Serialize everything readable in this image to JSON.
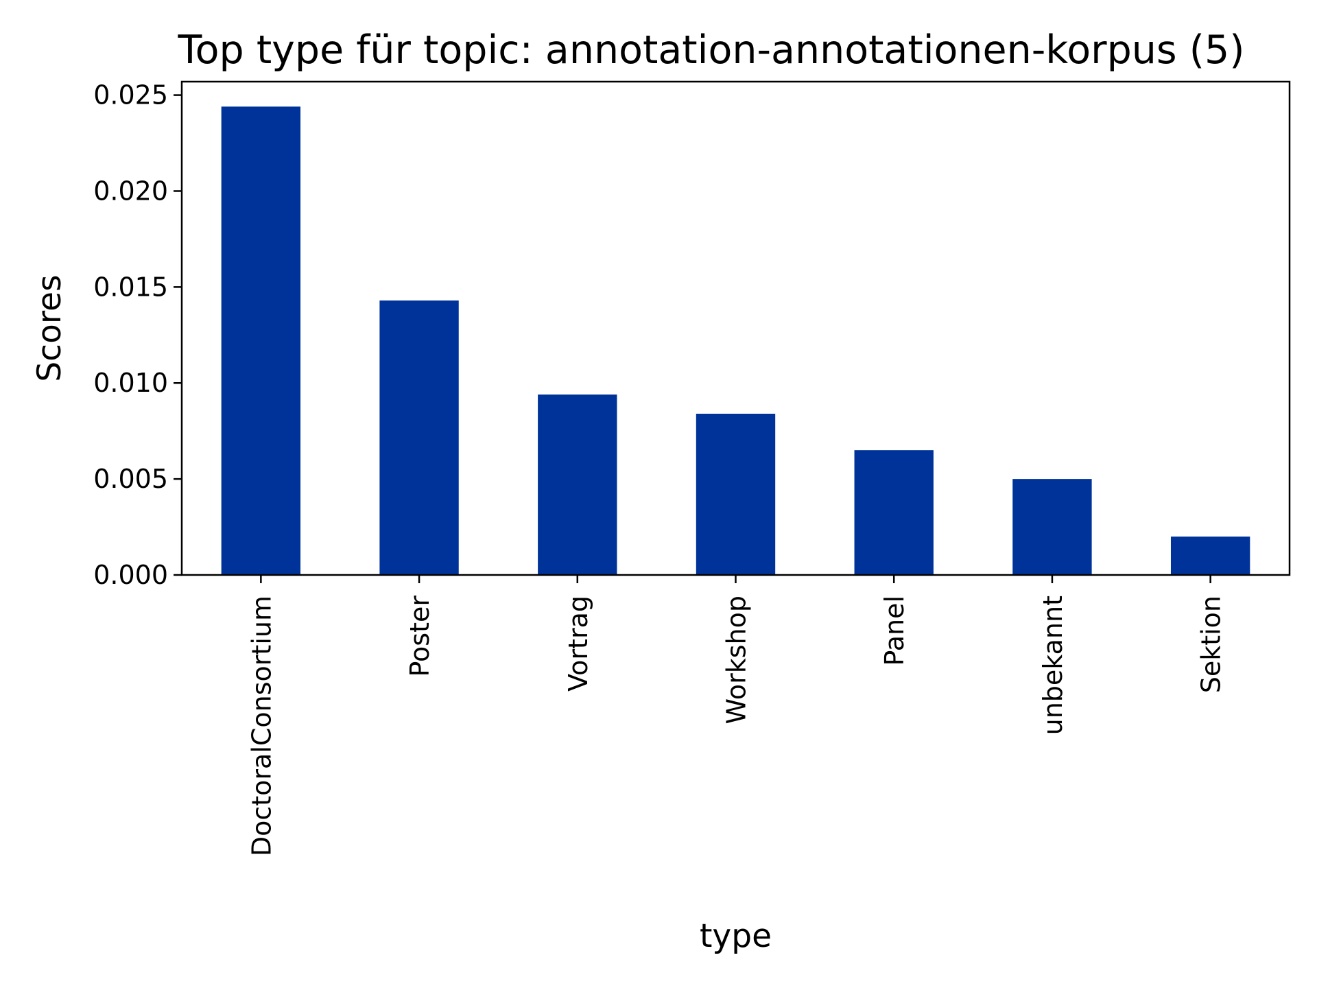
{
  "chart_data": {
    "type": "bar",
    "title": "Top type für topic: annotation-annotationen-korpus (5)",
    "xlabel": "type",
    "ylabel": "Scores",
    "categories": [
      "DoctoralConsortium",
      "Poster",
      "Vortrag",
      "Workshop",
      "Panel",
      "unbekannt",
      "Sektion"
    ],
    "values": [
      0.0244,
      0.0143,
      0.0094,
      0.0084,
      0.0065,
      0.005,
      0.002
    ],
    "ylim": [
      0,
      0.0257
    ],
    "yticks": [
      0.0,
      0.005,
      0.01,
      0.015,
      0.02,
      0.025
    ],
    "ytick_labels": [
      "0.000",
      "0.005",
      "0.010",
      "0.015",
      "0.020",
      "0.025"
    ],
    "bar_color": "#003399",
    "grid": false,
    "legend": "none"
  }
}
